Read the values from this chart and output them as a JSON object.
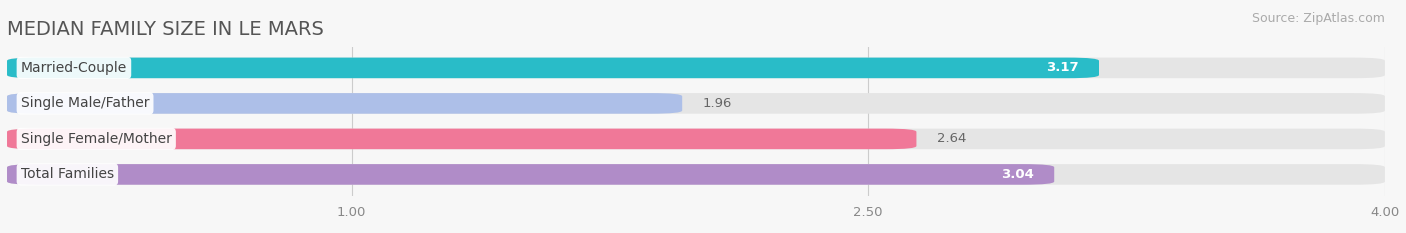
{
  "title": "MEDIAN FAMILY SIZE IN LE MARS",
  "source": "Source: ZipAtlas.com",
  "categories": [
    "Married-Couple",
    "Single Male/Father",
    "Single Female/Mother",
    "Total Families"
  ],
  "values": [
    3.17,
    1.96,
    2.64,
    3.04
  ],
  "bar_colors": [
    "#29bcc8",
    "#adbfe8",
    "#f07898",
    "#b08cc8"
  ],
  "value_in_bar": [
    true,
    false,
    false,
    true
  ],
  "value_text_colors_in": [
    "white",
    "#666666",
    "#666666",
    "white"
  ],
  "xmin": 0.0,
  "xmax": 4.0,
  "xticks": [
    1.0,
    2.5,
    4.0
  ],
  "background_color": "#f7f7f7",
  "bar_bg_color": "#e5e5e5",
  "title_fontsize": 14,
  "source_fontsize": 9,
  "label_fontsize": 10,
  "value_fontsize": 9.5
}
